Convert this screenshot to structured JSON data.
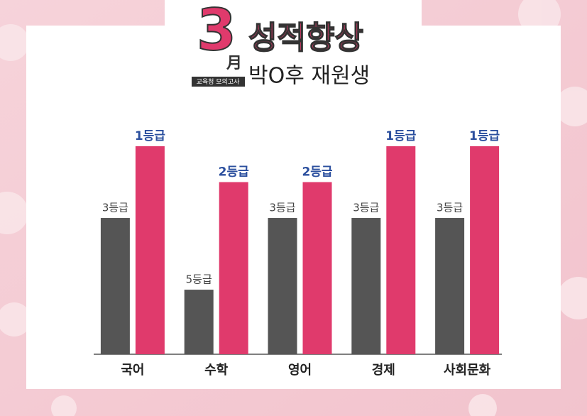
{
  "chart_data": {
    "type": "bar",
    "badge": {
      "number": "3",
      "unit": "月",
      "label": "교육청 모의고사"
    },
    "title": "성적향상",
    "subtitle": "박O후 재원생",
    "categories": [
      "국어",
      "수학",
      "영어",
      "경제",
      "사회문화"
    ],
    "series": [
      {
        "color": "#555555",
        "label_color": "#444444",
        "values": [
          3,
          5,
          3,
          3,
          3
        ],
        "value_labels": [
          "3등급",
          "5등급",
          "3등급",
          "3등급",
          "3등급"
        ]
      },
      {
        "color": "#e03a6c",
        "label_color": "#2b4f9e",
        "values": [
          1,
          2,
          2,
          1,
          1
        ],
        "value_labels": [
          "1등급",
          "2등급",
          "2등급",
          "1등급",
          "1등급"
        ]
      }
    ],
    "ylim": [
      6.8,
      1
    ]
  }
}
